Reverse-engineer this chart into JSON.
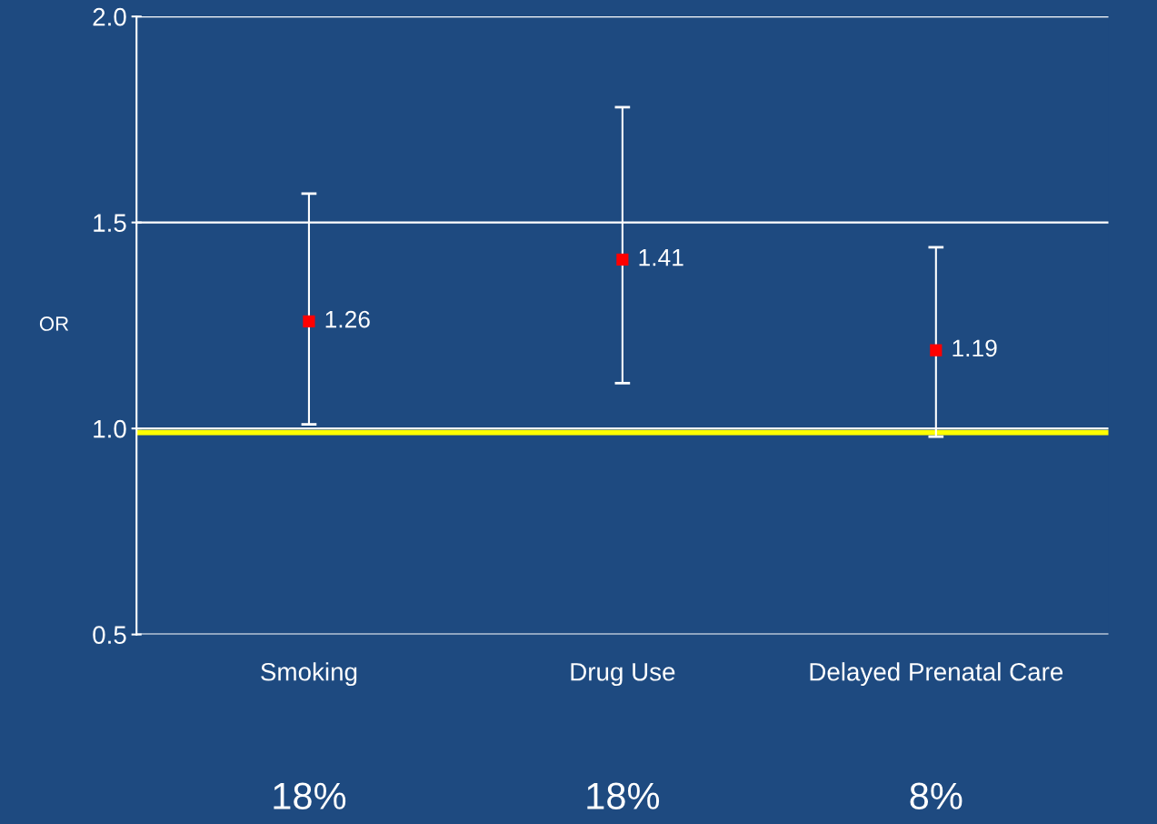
{
  "chart_data": {
    "type": "scatter",
    "ylabel": "OR",
    "categories": [
      "Smoking",
      "Drug Use",
      "Delayed Prenatal Care"
    ],
    "series": [
      {
        "color": "#ff0000",
        "values": [
          1.26,
          1.41,
          1.19
        ],
        "errors": [
          [
            1.01,
            1.57
          ],
          [
            1.11,
            1.78
          ],
          [
            0.98,
            1.44
          ]
        ]
      }
    ],
    "marker": "square",
    "data_labels": true,
    "ylim": [
      0.5,
      2.0
    ],
    "yticks": [
      {
        "value": 0.5,
        "label": "0.5"
      },
      {
        "value": 1.0,
        "label": "1.0"
      },
      {
        "value": 1.5,
        "label": "1.5"
      },
      {
        "value": 2.0,
        "label": "2.0"
      }
    ],
    "grid": "y",
    "ref_lines": [
      {
        "axis": "y",
        "value": 0.99,
        "color": "#ffff00"
      }
    ],
    "annotations": [
      "18%",
      "18%",
      "8%"
    ]
  }
}
